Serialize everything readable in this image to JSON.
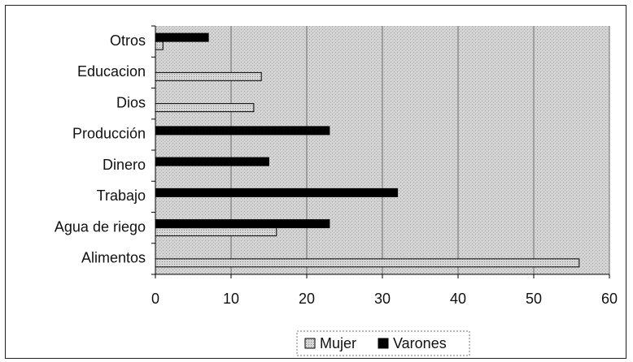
{
  "chart_data": {
    "type": "bar",
    "orientation": "horizontal",
    "categories": [
      "Otros",
      "Educacion",
      "Dios",
      "Producción",
      "Dinero",
      "Trabajo",
      "Agua de riego",
      "Alimentos"
    ],
    "series": [
      {
        "name": "Mujer",
        "values": [
          1,
          14,
          13,
          0,
          0,
          0,
          16,
          56
        ],
        "color": "#c8c8c8"
      },
      {
        "name": "Varones",
        "values": [
          7,
          0,
          0,
          23,
          15,
          32,
          23,
          0
        ],
        "color": "#000000"
      }
    ],
    "xlim": [
      0,
      60
    ],
    "xticks": [
      0,
      10,
      20,
      30,
      40,
      50,
      60
    ],
    "grid": true,
    "legend": "bottom-center",
    "plot_background": "#d8d8d8",
    "title": "",
    "xlabel": "",
    "ylabel": ""
  }
}
